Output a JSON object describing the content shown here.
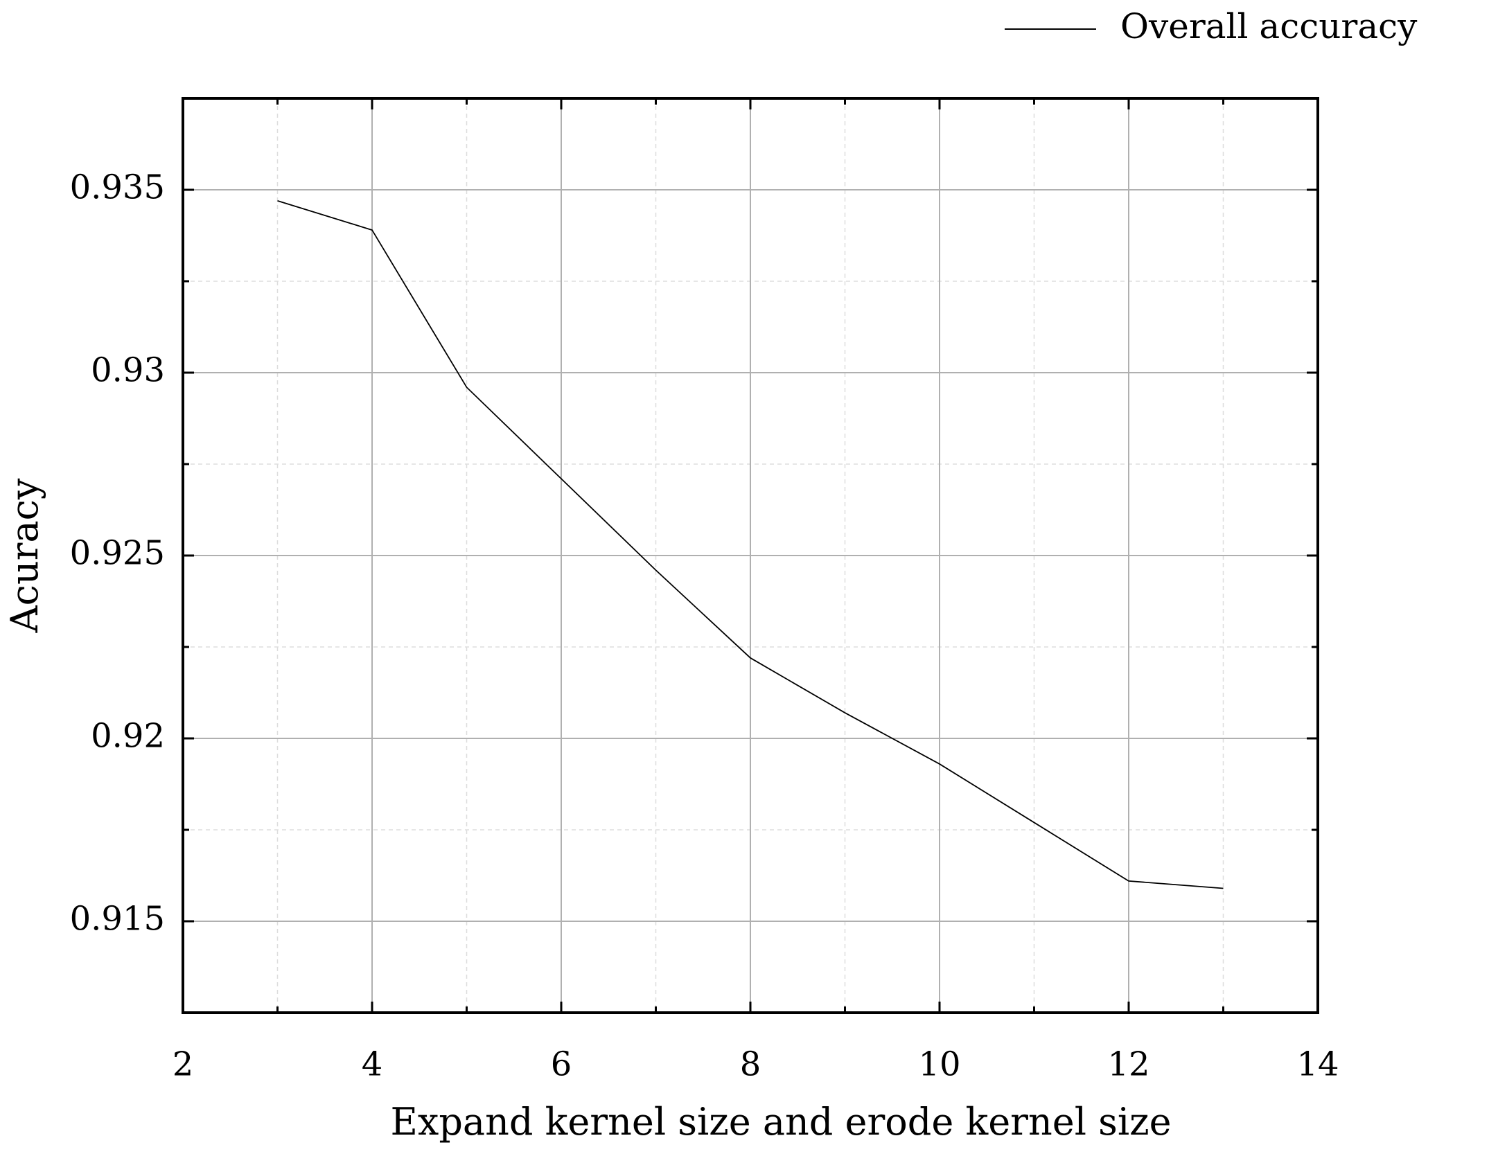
{
  "chart_data": {
    "type": "line",
    "x_label": "Expand kernel size and erode kernel size",
    "y_label": "Acuracy",
    "x": [
      3,
      4,
      5,
      6,
      7,
      8,
      9,
      10,
      11,
      12,
      13
    ],
    "series": [
      {
        "name": "Overall accuracy",
        "color": "#000000",
        "values": [
          0.9347,
          0.9339,
          0.9296,
          0.9271,
          0.9246,
          0.9222,
          0.9207,
          0.9193,
          0.9177,
          0.9161,
          0.9159
        ]
      }
    ],
    "xlim": [
      2,
      14
    ],
    "xticks": [
      2,
      4,
      6,
      8,
      10,
      12,
      14
    ],
    "xminorticks": [
      3,
      5,
      7,
      9,
      11,
      13
    ],
    "ylim": [
      0.9125,
      0.9375
    ],
    "yticks": [
      0.915,
      0.92,
      0.925,
      0.93,
      0.935
    ],
    "yminorticks": [
      0.9125,
      0.9175,
      0.9225,
      0.9275,
      0.9325
    ],
    "grid": true,
    "legend": "top-right"
  }
}
